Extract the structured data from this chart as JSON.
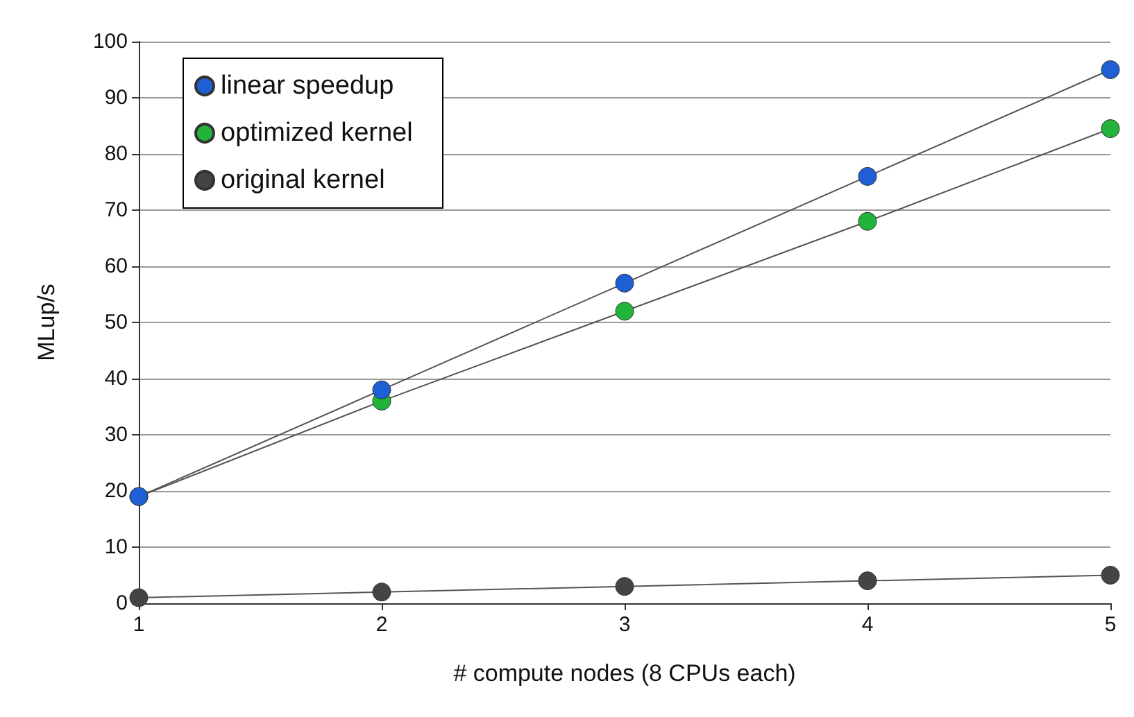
{
  "chart_data": {
    "type": "line",
    "xlabel": "# compute nodes (8 CPUs each)",
    "ylabel": "MLup/s",
    "x": [
      1,
      2,
      3,
      4,
      5
    ],
    "series": [
      {
        "name": "linear speedup",
        "color": "#1f5fd6",
        "values": [
          19,
          38,
          57,
          76,
          95
        ]
      },
      {
        "name": "optimized kernel",
        "color": "#22b33a",
        "values": [
          19,
          36,
          52,
          68,
          84.5
        ]
      },
      {
        "name": "original kernel",
        "color": "#444444",
        "values": [
          1,
          2,
          3,
          4,
          5
        ]
      }
    ],
    "xlim": [
      1,
      5
    ],
    "xticks": [
      1,
      2,
      3,
      4,
      5
    ],
    "ylim": [
      0,
      100
    ],
    "yticks": [
      0,
      10,
      20,
      30,
      40,
      50,
      60,
      70,
      80,
      90,
      100
    ],
    "grid": "y",
    "legend": "top left",
    "marker": "circle",
    "line_style": "solid"
  }
}
